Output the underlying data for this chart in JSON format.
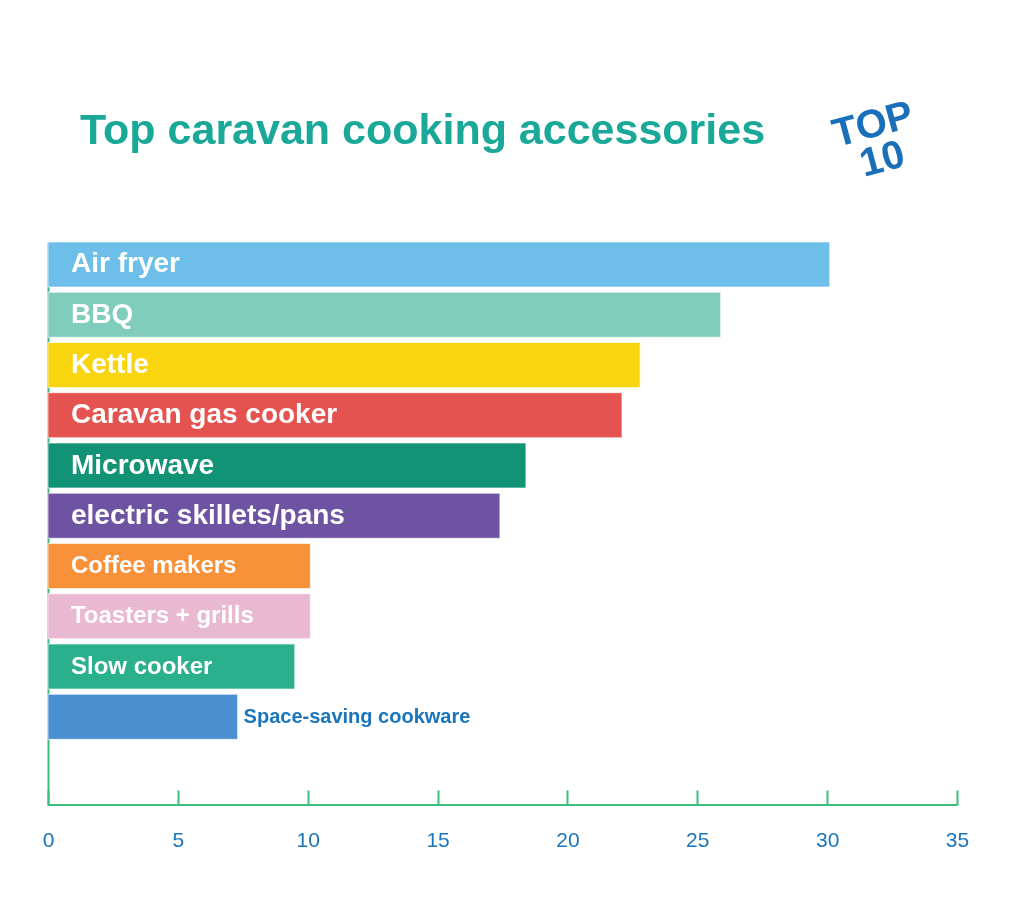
{
  "chart_data": {
    "type": "bar",
    "orientation": "horizontal",
    "title": "Top caravan cooking accessories",
    "categories": [
      "Air fryer",
      "BBQ",
      "Kettle",
      "Caravan gas cooker",
      "Microwave",
      "electric skillets/pans",
      "Coffee makers",
      "Toasters + grills",
      "Slow cooker",
      "Space-saving cookware"
    ],
    "values": [
      30.1,
      25.9,
      22.8,
      22.1,
      18.4,
      17.4,
      10.1,
      10.1,
      9.5,
      7.3
    ],
    "colors": [
      "#6dbfea",
      "#80cdbc",
      "#f9d50f",
      "#e55350",
      "#139376",
      "#6f53a3",
      "#f7923a",
      "#e8b9d1",
      "#2bb08e",
      "#4a8fd0"
    ],
    "xlim": [
      0,
      35
    ],
    "xticks": [
      0,
      5,
      10,
      15,
      20,
      25,
      30,
      35
    ],
    "grid": false,
    "annotations": [
      "TOP 10"
    ]
  }
}
